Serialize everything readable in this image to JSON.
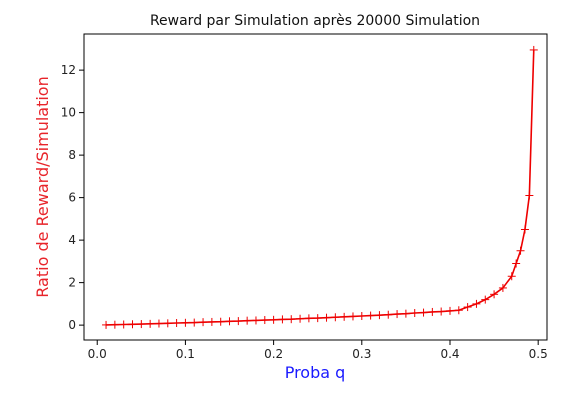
{
  "chart_data": {
    "type": "line",
    "title": "Reward par Simulation après 20000 Simulation",
    "xlabel": "Proba q",
    "ylabel": "Ratio de Reward/Simulation",
    "xlim": [
      -0.015,
      0.51
    ],
    "ylim": [
      -0.7,
      13.7
    ],
    "xticks": [
      0.0,
      0.1,
      0.2,
      0.3,
      0.4,
      0.5
    ],
    "xtick_labels": [
      "0.0",
      "0.1",
      "0.2",
      "0.3",
      "0.4",
      "0.5"
    ],
    "yticks": [
      0,
      2,
      4,
      6,
      8,
      10,
      12
    ],
    "ytick_labels": [
      "0",
      "2",
      "4",
      "6",
      "8",
      "10",
      "12"
    ],
    "grid": false,
    "colors": {
      "line": "#ee0000",
      "xlabel": "#1a1aff",
      "ylabel": "#e8242a",
      "axis": "#000000"
    },
    "series": [
      {
        "marker": "+",
        "x": [
          0.01,
          0.02,
          0.03,
          0.04,
          0.05,
          0.06,
          0.07,
          0.08,
          0.09,
          0.1,
          0.11,
          0.12,
          0.13,
          0.14,
          0.15,
          0.16,
          0.17,
          0.18,
          0.19,
          0.2,
          0.21,
          0.22,
          0.23,
          0.24,
          0.25,
          0.26,
          0.27,
          0.28,
          0.29,
          0.3,
          0.31,
          0.32,
          0.33,
          0.34,
          0.35,
          0.36,
          0.37,
          0.38,
          0.39,
          0.4,
          0.41,
          0.42,
          0.43,
          0.44,
          0.45,
          0.46,
          0.47,
          0.475,
          0.48,
          0.485,
          0.49,
          0.495
        ],
        "y": [
          0.01,
          0.02,
          0.03,
          0.04,
          0.05,
          0.06,
          0.075,
          0.085,
          0.1,
          0.11,
          0.12,
          0.14,
          0.15,
          0.16,
          0.18,
          0.19,
          0.21,
          0.22,
          0.24,
          0.25,
          0.27,
          0.28,
          0.3,
          0.32,
          0.33,
          0.35,
          0.37,
          0.39,
          0.41,
          0.43,
          0.45,
          0.47,
          0.49,
          0.52,
          0.54,
          0.57,
          0.59,
          0.62,
          0.64,
          0.67,
          0.7,
          0.85,
          1.0,
          1.2,
          1.45,
          1.75,
          2.3,
          2.9,
          3.5,
          4.5,
          6.1,
          12.95
        ]
      }
    ]
  }
}
